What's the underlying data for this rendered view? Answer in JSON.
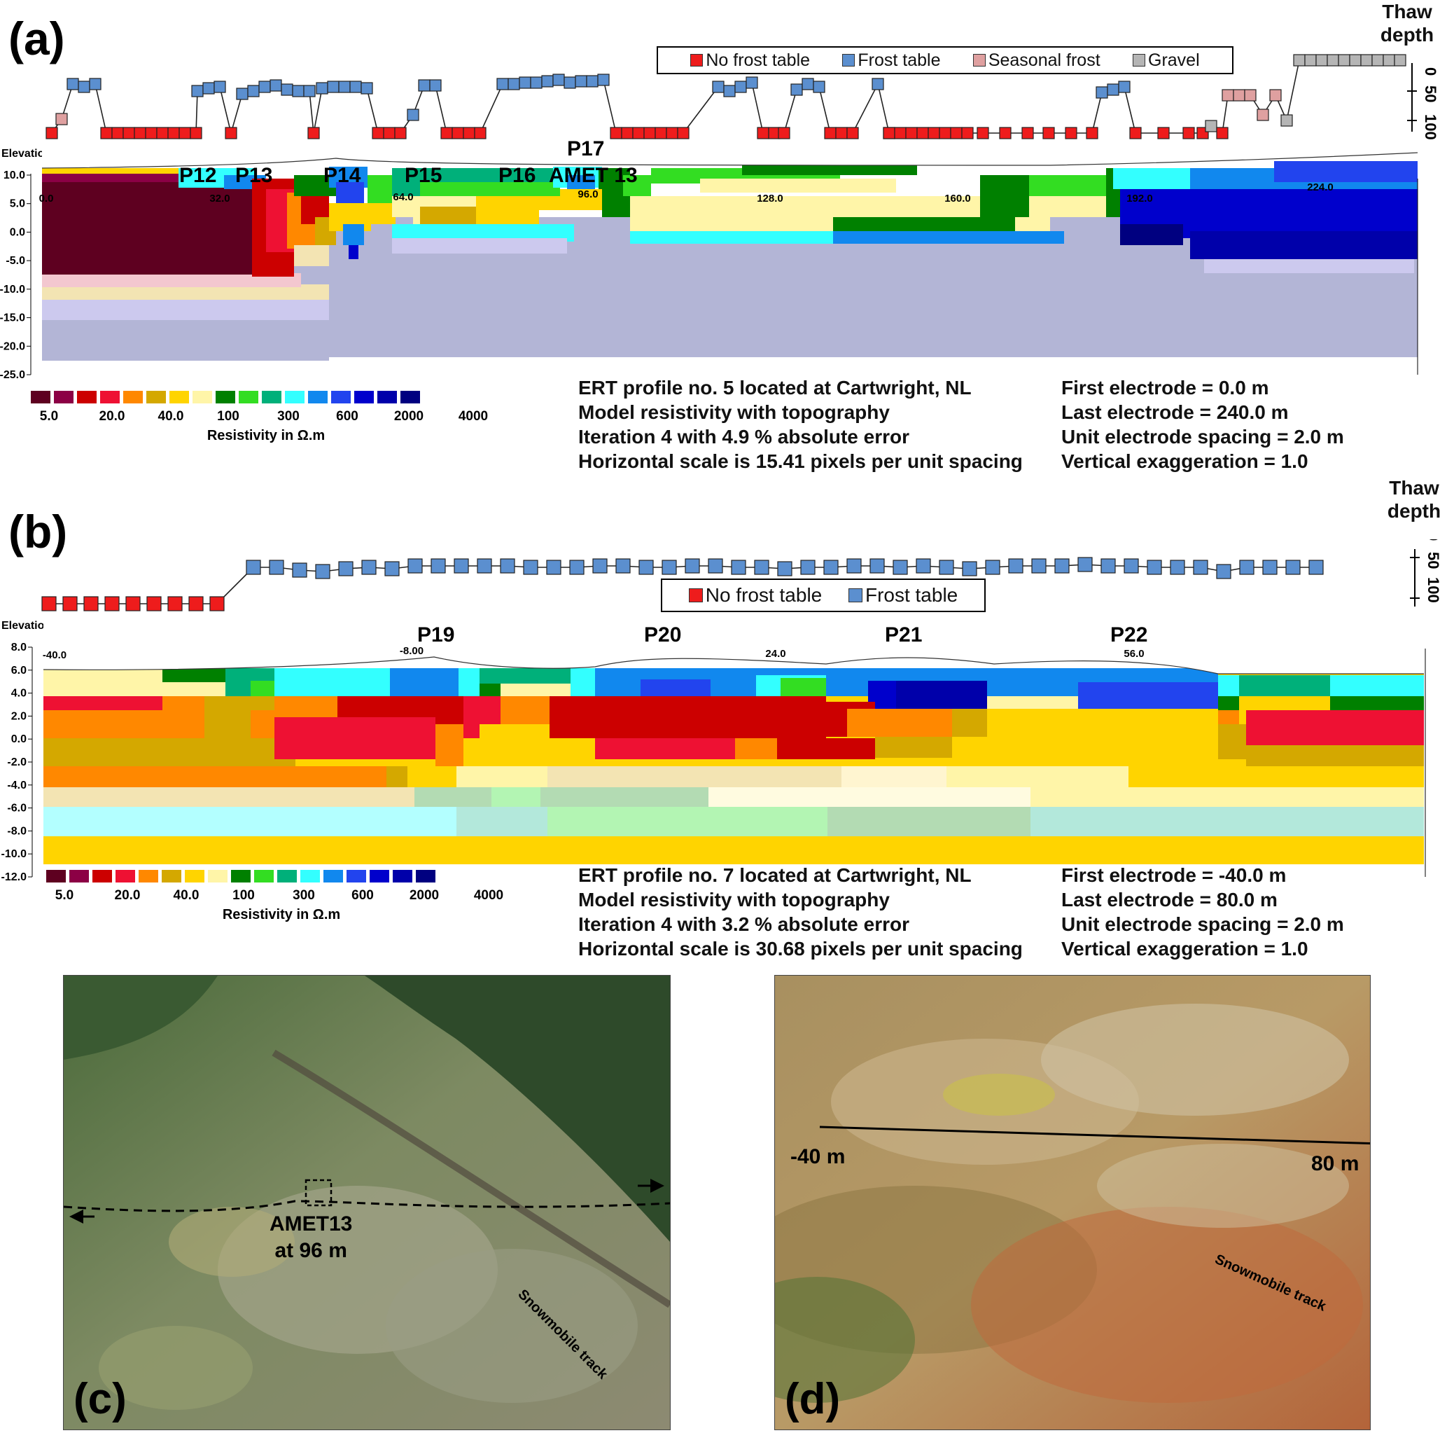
{
  "panels": {
    "a": "(a)",
    "b": "(b)",
    "c": "(c)",
    "d": "(d)"
  },
  "thaw_axis": {
    "title_line1": "Thaw",
    "title_line2": "depth",
    "ticks": [
      "0",
      "50",
      "100"
    ]
  },
  "profile_a": {
    "legend": [
      {
        "label": "No frost table",
        "color": "#ee1c1c"
      },
      {
        "label": "Frost table",
        "color": "#5b8fcf"
      },
      {
        "label": "Seasonal frost",
        "color": "#dfa0a0"
      },
      {
        "label": "Gravel",
        "color": "#b5b5b5"
      }
    ],
    "elevation_label": "Elevation",
    "y_ticks": [
      "10.0",
      "5.0",
      "0.0",
      "-5.0",
      "-10.0",
      "-15.0",
      "-20.0",
      "-25.0"
    ],
    "x_ticks": [
      "0.0",
      "32.0",
      "64.0",
      "96.0",
      "128.0",
      "160.0",
      "192.0",
      "224.0"
    ],
    "point_labels": [
      "P12",
      "P13",
      "P14",
      "P15",
      "P16",
      "P17",
      "AMET 13"
    ],
    "info_left": [
      "ERT profile no. 5 located at Cartwright, NL",
      "Model resistivity with topography",
      "Iteration 4 with 4.9 % absolute error",
      "Horizontal scale is 15.41 pixels per unit spacing"
    ],
    "info_right": [
      "First electrode = 0.0 m",
      "Last electrode = 240.0 m",
      "Unit electrode spacing = 2.0 m",
      "Vertical exaggeration = 1.0"
    ]
  },
  "profile_b": {
    "legend": [
      {
        "label": "No frost table",
        "color": "#ee1c1c"
      },
      {
        "label": "Frost table",
        "color": "#5b8fcf"
      }
    ],
    "elevation_label": "Elevation",
    "y_ticks": [
      "8.0",
      "6.0",
      "4.0",
      "2.0",
      "0.0",
      "-2.0",
      "-4.0",
      "-6.0",
      "-8.0",
      "-10.0",
      "-12.0"
    ],
    "x_ticks": [
      "-40.0",
      "-8.00",
      "24.0",
      "56.0"
    ],
    "point_labels": [
      "P19",
      "P20",
      "P21",
      "P22"
    ],
    "info_left": [
      "ERT profile no. 7 located at Cartwright, NL",
      "Model resistivity with topography",
      "Iteration 4 with 3.2 % absolute error",
      "Horizontal scale is 30.68 pixels per unit spacing"
    ],
    "info_right": [
      "First electrode = -40.0 m",
      "Last electrode = 80.0 m",
      "Unit electrode spacing = 2.0 m",
      "Vertical exaggeration = 1.0"
    ]
  },
  "resistivity_scale": {
    "colors": [
      "#5e0020",
      "#8c0045",
      "#cc0000",
      "#ee1133",
      "#ff8800",
      "#d4a800",
      "#ffd400",
      "#fff5a8",
      "#008000",
      "#33dd22",
      "#00b07a",
      "#33ffff",
      "#1188ee",
      "#2244ee",
      "#0000cc",
      "#0000aa",
      "#000080"
    ],
    "tick_labels": [
      "5.0",
      "20.0",
      "40.0",
      "100",
      "300",
      "600",
      "2000",
      "4000"
    ],
    "title": "Resistivity in Ω.m"
  },
  "photo_c": {
    "annotation_line1": "AMET13",
    "annotation_line2": "at 96 m",
    "track_label": "Snowmobile track"
  },
  "photo_d": {
    "start_label": "-40 m",
    "end_label": "80 m",
    "track_label": "Snowmobile track"
  }
}
